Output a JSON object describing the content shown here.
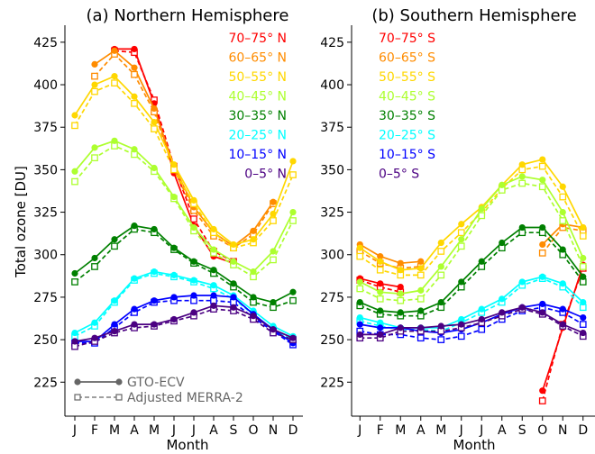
{
  "chart_data": [
    {
      "type": "line",
      "title": "(a) Northern Hemisphere",
      "xlabel": "Month",
      "ylabel": "Total ozone [DU]",
      "categories": [
        "J",
        "F",
        "M",
        "A",
        "M",
        "J",
        "J",
        "A",
        "S",
        "O",
        "N",
        "D"
      ],
      "ylim": [
        205,
        435
      ],
      "yticks": [
        225,
        250,
        275,
        300,
        325,
        350,
        375,
        400,
        425
      ],
      "legend_position": "top-right",
      "series": [
        {
          "name": "70–75° N",
          "color": "#ff0000",
          "gto": [
            null,
            null,
            421,
            421,
            389,
            348,
            317,
            299,
            295,
            null,
            null,
            null
          ],
          "merra": [
            null,
            null,
            420,
            419,
            391,
            352,
            321,
            302,
            296,
            null,
            null,
            null
          ]
        },
        {
          "name": "60–65° N",
          "color": "#ff8c00",
          "gto": [
            null,
            412,
            420,
            410,
            386,
            352,
            328,
            313,
            305,
            314,
            331,
            null
          ],
          "merra": [
            null,
            405,
            418,
            406,
            384,
            350,
            326,
            311,
            304,
            312,
            330,
            null
          ]
        },
        {
          "name": "50–55° N",
          "color": "#ffd700",
          "gto": [
            382,
            400,
            405,
            393,
            378,
            353,
            332,
            315,
            306,
            309,
            324,
            355
          ],
          "merra": [
            376,
            396,
            401,
            389,
            374,
            350,
            330,
            313,
            304,
            307,
            320,
            347
          ]
        },
        {
          "name": "40–45° N",
          "color": "#adff2f",
          "gto": [
            349,
            363,
            367,
            362,
            351,
            334,
            316,
            303,
            296,
            290,
            302,
            325
          ],
          "merra": [
            343,
            357,
            364,
            359,
            349,
            333,
            314,
            301,
            294,
            287,
            297,
            320
          ]
        },
        {
          "name": "30–35° N",
          "color": "#008000",
          "gto": [
            289,
            298,
            309,
            317,
            315,
            304,
            296,
            291,
            283,
            275,
            272,
            278
          ],
          "merra": [
            284,
            293,
            305,
            315,
            313,
            303,
            295,
            289,
            281,
            272,
            269,
            273
          ]
        },
        {
          "name": "20–25° N",
          "color": "#00ffff",
          "gto": [
            254,
            260,
            273,
            286,
            290,
            288,
            285,
            282,
            276,
            267,
            258,
            252
          ],
          "merra": [
            252,
            258,
            272,
            285,
            289,
            287,
            284,
            280,
            274,
            265,
            256,
            250
          ]
        },
        {
          "name": "10–15° N",
          "color": "#0000ff",
          "gto": [
            249,
            249,
            259,
            268,
            273,
            275,
            276,
            276,
            275,
            265,
            256,
            248
          ],
          "merra": [
            248,
            248,
            257,
            266,
            272,
            273,
            273,
            273,
            272,
            263,
            255,
            247
          ]
        },
        {
          "name": "0–5° N",
          "color": "#4b0082",
          "gto": [
            249,
            251,
            255,
            259,
            259,
            262,
            266,
            270,
            269,
            264,
            256,
            251
          ],
          "merra": [
            246,
            249,
            254,
            257,
            258,
            261,
            264,
            268,
            267,
            262,
            254,
            250
          ]
        }
      ],
      "style_legend": [
        "GTO-ECV",
        "Adjusted MERRA-2"
      ]
    },
    {
      "type": "line",
      "title": "(b) Southern Hemisphere",
      "xlabel": "Month",
      "ylabel": "",
      "categories": [
        "J",
        "F",
        "M",
        "A",
        "M",
        "J",
        "J",
        "A",
        "S",
        "O",
        "N",
        "D"
      ],
      "ylim": [
        205,
        435
      ],
      "yticks": [
        225,
        250,
        275,
        300,
        325,
        350,
        375,
        400,
        425
      ],
      "legend_position": "top-left",
      "series": [
        {
          "name": "70–75° S",
          "color": "#ff0000",
          "gto": [
            286,
            283,
            281,
            null,
            null,
            null,
            null,
            null,
            null,
            220,
            257,
            294
          ],
          "merra": [
            285,
            281,
            278,
            null,
            null,
            null,
            null,
            null,
            null,
            214,
            259,
            292
          ]
        },
        {
          "name": "60–65° S",
          "color": "#ff8c00",
          "gto": [
            306,
            299,
            295,
            296,
            null,
            null,
            null,
            null,
            null,
            306,
            318,
            316
          ],
          "merra": [
            302,
            295,
            292,
            293,
            null,
            null,
            null,
            null,
            null,
            301,
            316,
            314
          ]
        },
        {
          "name": "50–55° S",
          "color": "#ffd700",
          "gto": [
            304,
            296,
            291,
            292,
            307,
            318,
            328,
            341,
            353,
            356,
            340,
            316
          ],
          "merra": [
            299,
            291,
            288,
            288,
            302,
            313,
            325,
            339,
            350,
            352,
            334,
            311
          ]
        },
        {
          "name": "40–45° S",
          "color": "#adff2f",
          "gto": [
            284,
            278,
            277,
            279,
            293,
            309,
            327,
            341,
            346,
            344,
            325,
            298
          ],
          "merra": [
            280,
            274,
            273,
            274,
            288,
            305,
            323,
            338,
            342,
            340,
            320,
            293
          ]
        },
        {
          "name": "30–35° S",
          "color": "#008000",
          "gto": [
            272,
            267,
            266,
            267,
            272,
            284,
            296,
            307,
            316,
            316,
            303,
            287
          ],
          "merra": [
            270,
            265,
            264,
            264,
            269,
            281,
            293,
            304,
            313,
            313,
            300,
            284
          ]
        },
        {
          "name": "20–25° S",
          "color": "#00ffff",
          "gto": [
            263,
            260,
            257,
            257,
            257,
            262,
            268,
            274,
            284,
            287,
            283,
            272
          ],
          "merra": [
            261,
            258,
            256,
            256,
            255,
            260,
            266,
            272,
            282,
            286,
            281,
            269
          ]
        },
        {
          "name": "10–15° S",
          "color": "#0000ff",
          "gto": [
            259,
            257,
            257,
            255,
            254,
            256,
            260,
            265,
            269,
            271,
            268,
            263
          ],
          "merra": [
            255,
            253,
            253,
            251,
            250,
            252,
            256,
            262,
            267,
            269,
            266,
            259
          ]
        },
        {
          "name": "0–5° S",
          "color": "#4b0082",
          "gto": [
            253,
            253,
            257,
            257,
            258,
            259,
            262,
            266,
            269,
            266,
            259,
            254
          ],
          "merra": [
            251,
            251,
            255,
            255,
            255,
            257,
            260,
            264,
            268,
            265,
            258,
            252
          ]
        }
      ]
    }
  ]
}
